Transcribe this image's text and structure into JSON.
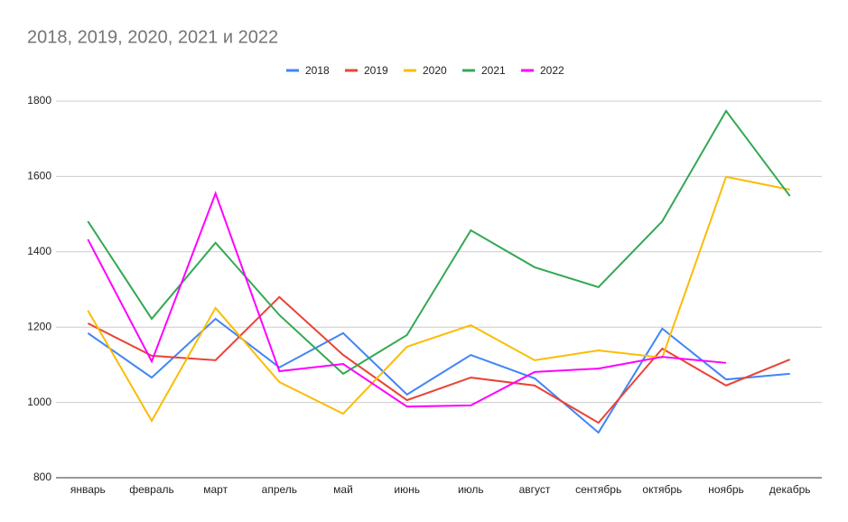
{
  "chart_data": {
    "type": "line",
    "title": "2018, 2019, 2020, 2021 и 2022",
    "categories": [
      "январь",
      "февраль",
      "март",
      "апрель",
      "май",
      "июнь",
      "июль",
      "август",
      "сентябрь",
      "октябрь",
      "ноябрь",
      "декабрь"
    ],
    "series": [
      {
        "name": "2018",
        "color": "#4285f4",
        "values": [
          1184,
          1066,
          1222,
          1093,
          1184,
          1021,
          1126,
          1064,
          920,
          1196,
          1061,
          1076
        ]
      },
      {
        "name": "2019",
        "color": "#ea4335",
        "values": [
          1210,
          1124,
          1112,
          1280,
          1126,
          1006,
          1066,
          1045,
          946,
          1143,
          1045,
          1114
        ]
      },
      {
        "name": "2020",
        "color": "#fbbc04",
        "values": [
          1244,
          951,
          1251,
          1054,
          970,
          1148,
          1205,
          1112,
          1138,
          1119,
          1599,
          1565
        ]
      },
      {
        "name": "2021",
        "color": "#34a853",
        "values": [
          1481,
          1222,
          1424,
          1232,
          1076,
          1179,
          1457,
          1359,
          1306,
          1481,
          1774,
          1548
        ]
      },
      {
        "name": "2022",
        "color": "#ff00ff",
        "values": [
          1433,
          1109,
          1555,
          1083,
          1102,
          989,
          992,
          1081,
          1090,
          1121,
          1105,
          null
        ]
      }
    ],
    "ylim": [
      800,
      1800
    ],
    "yticks": [
      800,
      1000,
      1200,
      1400,
      1600,
      1800
    ],
    "grid": true,
    "legend": "top"
  }
}
